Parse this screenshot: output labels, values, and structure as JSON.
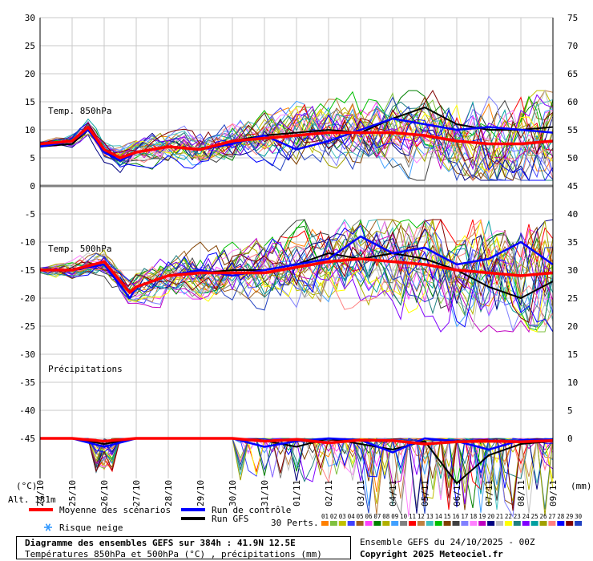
{
  "chart_data": {
    "type": "line",
    "x_dates": [
      "25/10",
      "26/10",
      "27/10",
      "28/10",
      "29/10",
      "30/10",
      "31/10",
      "01/11",
      "02/11",
      "03/11",
      "04/11",
      "05/11",
      "06/11",
      "07/11",
      "08/11",
      "09/11"
    ],
    "x_start_label": "24/10",
    "left_axis": {
      "unit": "(°C)",
      "ticks": [
        30,
        25,
        20,
        15,
        10,
        5,
        0,
        -5,
        -10,
        -15,
        -20,
        -25,
        -30,
        -35,
        -40,
        -45
      ]
    },
    "right_axis": {
      "unit": "(mm)",
      "ticks": [
        75,
        70,
        65,
        60,
        55,
        50,
        45,
        40,
        35,
        30,
        25,
        20,
        15,
        10,
        5,
        0
      ]
    },
    "alt_label": "Alt. 131m",
    "panels": [
      {
        "title": "Temp. 850hPa",
        "mean_series": {
          "name": "Moyenne des scénarios",
          "x_days": [
            0,
            1,
            1.5,
            2,
            2.5,
            3,
            4,
            5,
            6,
            7,
            8,
            9,
            10,
            11,
            12,
            13,
            14,
            15,
            16
          ],
          "values": [
            7.5,
            8,
            10.5,
            6.5,
            5,
            6,
            7,
            6.5,
            8,
            8.5,
            9,
            9.5,
            9.5,
            9.5,
            9,
            8,
            7.5,
            7.5,
            8
          ]
        },
        "control_series": {
          "name": "Run de contrôle",
          "x_days": [
            0,
            1,
            1.5,
            2,
            2.5,
            3,
            4,
            5,
            6,
            7,
            8,
            9,
            10,
            11,
            12,
            13,
            14,
            15,
            16
          ],
          "values": [
            7,
            8,
            10,
            6,
            4.5,
            6,
            7,
            6.5,
            7.5,
            9,
            6.5,
            8,
            10,
            12,
            11,
            10,
            10.5,
            10,
            9.5
          ]
        },
        "gfs_series": {
          "name": "Run GFS",
          "x_days": [
            0,
            1,
            1.5,
            2,
            2.5,
            3,
            4,
            5,
            6,
            7,
            8,
            9,
            10,
            11,
            12,
            13,
            14,
            15,
            16
          ],
          "values": [
            7,
            7.5,
            10,
            6,
            5,
            6,
            7,
            6.5,
            8,
            9,
            9.5,
            10,
            9.5,
            12,
            14,
            11,
            10,
            10,
            10.5
          ]
        }
      },
      {
        "title": "Temp. 500hPa",
        "mean_series": {
          "x_days": [
            0,
            1,
            2,
            2.8,
            3,
            4,
            5,
            6,
            7,
            8,
            9,
            10,
            11,
            12,
            13,
            14,
            15,
            16
          ],
          "values": [
            -15,
            -15,
            -13.5,
            -19,
            -18,
            -16,
            -15.5,
            -15.5,
            -15.5,
            -14.5,
            -13.5,
            -13,
            -13.5,
            -14,
            -15,
            -15.5,
            -16,
            -15.5
          ]
        },
        "control_series": {
          "x_days": [
            0,
            1,
            2,
            2.8,
            3,
            4,
            5,
            6,
            7,
            8,
            9,
            10,
            11,
            12,
            13,
            14,
            15,
            16
          ],
          "values": [
            -15,
            -15,
            -14,
            -20,
            -18,
            -16,
            -15,
            -16,
            -15,
            -14,
            -13,
            -9,
            -12,
            -11,
            -14,
            -13,
            -10,
            -14
          ]
        },
        "gfs_series": {
          "x_days": [
            0,
            1,
            2,
            2.8,
            3,
            4,
            5,
            6,
            7,
            8,
            9,
            10,
            11,
            12,
            13,
            14,
            15,
            16
          ],
          "values": [
            -15,
            -15,
            -13.5,
            -19,
            -18,
            -16,
            -15.5,
            -15,
            -15,
            -14,
            -12,
            -13,
            -12,
            -13,
            -15,
            -18,
            -20,
            -17
          ]
        }
      },
      {
        "title": "Précipitations",
        "mean_series": {
          "x_days": [
            0,
            1,
            2,
            3,
            4,
            5,
            6,
            7,
            8,
            9,
            10,
            11,
            12,
            13,
            14,
            15,
            16
          ],
          "values": [
            0,
            0,
            0.5,
            0,
            0,
            0,
            0,
            0.5,
            0.2,
            0.8,
            0.3,
            0.4,
            1,
            0.6,
            0.5,
            0.6,
            0.4
          ]
        },
        "control_series": {
          "x_days": [
            0,
            1,
            2,
            3,
            4,
            5,
            6,
            7,
            8,
            9,
            10,
            11,
            12,
            13,
            14,
            15,
            16
          ],
          "values": [
            0,
            0,
            1.5,
            0,
            0,
            0,
            0,
            1.5,
            0.5,
            0,
            0.3,
            2.5,
            0,
            0.5,
            2,
            0.3,
            0.2
          ]
        },
        "gfs_series": {
          "x_days": [
            0,
            1,
            2,
            3,
            4,
            5,
            6,
            7,
            8,
            9,
            10,
            11,
            12,
            13,
            14,
            15,
            16
          ],
          "values": [
            0,
            0,
            1,
            0,
            0,
            0,
            0,
            0.4,
            1.5,
            0,
            1,
            2,
            0.5,
            8,
            3,
            1,
            0.5
          ]
        }
      }
    ],
    "legend": {
      "mean": "Moyenne des scénarios",
      "control": "Run de contrôle",
      "gfs": "Run GFS",
      "snow": "Risque neige",
      "perts": "30 Perts."
    },
    "member_labels": [
      "01",
      "02",
      "03",
      "04",
      "05",
      "06",
      "07",
      "08",
      "09",
      "10",
      "11",
      "12",
      "13",
      "14",
      "15",
      "16",
      "17",
      "18",
      "19",
      "20",
      "21",
      "22",
      "23",
      "24",
      "25",
      "26",
      "27",
      "28",
      "29",
      "30"
    ],
    "member_colors": [
      "#ff8000",
      "#80c040",
      "#c0c000",
      "#4040ff",
      "#a06020",
      "#ff40ff",
      "#008000",
      "#b0b000",
      "#40a0ff",
      "#808080",
      "#ff0000",
      "#c08040",
      "#40c0c0",
      "#00c000",
      "#804000",
      "#404040",
      "#8080ff",
      "#ff80ff",
      "#c000c0",
      "#000080",
      "#c0c0c0",
      "#ffff00",
      "#208080",
      "#8000ff",
      "#00a0a0",
      "#a0a000",
      "#ff8080",
      "#0000ff",
      "#800000",
      "#2040c0"
    ]
  },
  "footer": {
    "title": "Diagramme des ensembles GEFS sur 384h : 41.9N 12.5E",
    "subtitle": "Températures 850hPa et 500hPa (°C) , précipitations (mm)",
    "run": "Ensemble GEFS du 24/10/2025 - 00Z",
    "copyright": "Copyright 2025 Meteociel.fr"
  },
  "colors": {
    "mean": "#ff0000",
    "control": "#0000ff",
    "gfs": "#000000",
    "grid": "#c0c0c0",
    "snow": "#3399ff"
  }
}
